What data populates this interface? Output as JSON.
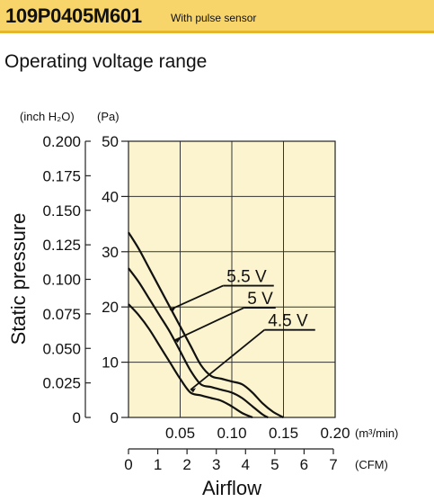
{
  "header": {
    "model": "109P0405M601",
    "note": "With pulse sensor"
  },
  "section_title": "Operating voltage range",
  "colors": {
    "header_bg": "#f7d56a",
    "plot_bg": "#fbf4cf",
    "curve": "#111111"
  },
  "chart_data": {
    "type": "line",
    "title": "",
    "xlabel": "Airflow",
    "ylabel": "Static pressure",
    "x_unit": "(m³/min)",
    "x2_unit": "(CFM)",
    "y_unit_left": "(inch H₂O)",
    "y_unit_right": "(Pa)",
    "xlim": [
      0,
      0.2
    ],
    "ylim": [
      0,
      50
    ],
    "x_ticks": [
      "0.05",
      "0.10",
      "0.15",
      "0.20"
    ],
    "x_tick_values": [
      0.05,
      0.1,
      0.15,
      0.2
    ],
    "x2_ticks": [
      "0",
      "1",
      "2",
      "3",
      "4",
      "5",
      "6",
      "7"
    ],
    "x2_tick_values": [
      0,
      1,
      2,
      3,
      4,
      5,
      6,
      7
    ],
    "y_ticks_pa": [
      "0",
      "10",
      "20",
      "30",
      "40",
      "50"
    ],
    "y_tick_values_pa": [
      0,
      10,
      20,
      30,
      40,
      50
    ],
    "y_ticks_inch": [
      "0",
      "0.025",
      "0.050",
      "0.075",
      "0.100",
      "0.125",
      "0.150",
      "0.175",
      "0.200"
    ],
    "y_tick_values_inch": [
      0,
      0.025,
      0.05,
      0.075,
      0.1,
      0.125,
      0.15,
      0.175,
      0.2
    ],
    "grid": true,
    "series": [
      {
        "name": "5.5 V",
        "x": [
          0,
          0.01,
          0.02,
          0.03,
          0.04,
          0.05,
          0.06,
          0.07,
          0.08,
          0.09,
          0.1,
          0.11,
          0.12,
          0.13,
          0.14,
          0.15
        ],
        "y": [
          33.5,
          30.5,
          27,
          23.5,
          20,
          16.5,
          13,
          9.5,
          7.5,
          7,
          6.5,
          6,
          4.5,
          2.5,
          1,
          0
        ]
      },
      {
        "name": "5 V",
        "x": [
          0,
          0.01,
          0.02,
          0.03,
          0.04,
          0.05,
          0.06,
          0.07,
          0.08,
          0.09,
          0.1,
          0.11,
          0.12,
          0.13,
          0.135
        ],
        "y": [
          27,
          24.5,
          21.5,
          18.5,
          15.5,
          12,
          8.5,
          6,
          5.5,
          5,
          4.5,
          3.5,
          2,
          0.5,
          0
        ]
      },
      {
        "name": "4.5 V",
        "x": [
          0,
          0.01,
          0.02,
          0.03,
          0.04,
          0.05,
          0.06,
          0.07,
          0.08,
          0.09,
          0.1,
          0.11,
          0.12
        ],
        "y": [
          20.5,
          18.5,
          16,
          13,
          10,
          7,
          4.5,
          4,
          3.5,
          3,
          2,
          0.8,
          0
        ]
      }
    ],
    "labels": [
      {
        "series": "5.5 V",
        "text": "5.5 V",
        "anchor": [
          0.04,
          19.5
        ],
        "text_pos": [
          0.095,
          24.5
        ]
      },
      {
        "series": "5 V",
        "text": "5 V",
        "anchor": [
          0.045,
          14
        ],
        "text_pos": [
          0.115,
          20.5
        ]
      },
      {
        "series": "4.5 V",
        "text": "4.5 V",
        "anchor": [
          0.06,
          5
        ],
        "text_pos": [
          0.135,
          16.5
        ]
      }
    ]
  }
}
